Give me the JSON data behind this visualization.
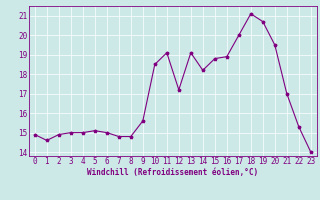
{
  "x": [
    0,
    1,
    2,
    3,
    4,
    5,
    6,
    7,
    8,
    9,
    10,
    11,
    12,
    13,
    14,
    15,
    16,
    17,
    18,
    19,
    20,
    21,
    22,
    23
  ],
  "y": [
    14.9,
    14.6,
    14.9,
    15.0,
    15.0,
    15.1,
    15.0,
    14.8,
    14.8,
    15.6,
    18.5,
    19.1,
    17.2,
    19.1,
    18.2,
    18.8,
    18.9,
    20.0,
    21.1,
    20.7,
    19.5,
    17.0,
    15.3,
    14.0
  ],
  "line_color": "#800080",
  "marker": "*",
  "markersize": 2.5,
  "linewidth": 0.8,
  "bg_color": "#cce9e8",
  "grid_color": "#ffffff",
  "xlabel": "Windchill (Refroidissement éolien,°C)",
  "ylabel": "",
  "xlim": [
    -0.5,
    23.5
  ],
  "ylim": [
    13.8,
    21.5
  ],
  "yticks": [
    14,
    15,
    16,
    17,
    18,
    19,
    20,
    21
  ],
  "xticks": [
    0,
    1,
    2,
    3,
    4,
    5,
    6,
    7,
    8,
    9,
    10,
    11,
    12,
    13,
    14,
    15,
    16,
    17,
    18,
    19,
    20,
    21,
    22,
    23
  ],
  "xlabel_fontsize": 5.5,
  "tick_fontsize": 5.5,
  "tick_color": "#800080",
  "label_color": "#800080",
  "axis_color": "#800080"
}
